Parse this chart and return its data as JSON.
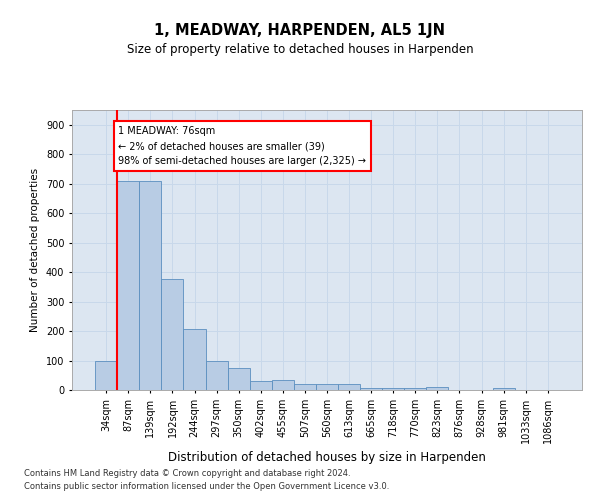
{
  "title": "1, MEADWAY, HARPENDEN, AL5 1JN",
  "subtitle": "Size of property relative to detached houses in Harpenden",
  "xlabel": "Distribution of detached houses by size in Harpenden",
  "ylabel": "Number of detached properties",
  "categories": [
    "34sqm",
    "87sqm",
    "139sqm",
    "192sqm",
    "244sqm",
    "297sqm",
    "350sqm",
    "402sqm",
    "455sqm",
    "507sqm",
    "560sqm",
    "613sqm",
    "665sqm",
    "718sqm",
    "770sqm",
    "823sqm",
    "876sqm",
    "928sqm",
    "981sqm",
    "1033sqm",
    "1086sqm"
  ],
  "bar_heights": [
    100,
    710,
    710,
    375,
    208,
    97,
    75,
    30,
    35,
    20,
    20,
    20,
    8,
    6,
    6,
    10,
    0,
    0,
    8,
    0,
    0
  ],
  "bar_color": "#b8cce4",
  "bar_edge_color": "#5b8fbf",
  "grid_color": "#c8d8ea",
  "background_color": "#dce6f1",
  "annotation_box_text": "1 MEADWAY: 76sqm\n← 2% of detached houses are smaller (39)\n98% of semi-detached houses are larger (2,325) →",
  "ylim": [
    0,
    950
  ],
  "yticks": [
    0,
    100,
    200,
    300,
    400,
    500,
    600,
    700,
    800,
    900
  ],
  "footnote1": "Contains HM Land Registry data © Crown copyright and database right 2024.",
  "footnote2": "Contains public sector information licensed under the Open Government Licence v3.0."
}
